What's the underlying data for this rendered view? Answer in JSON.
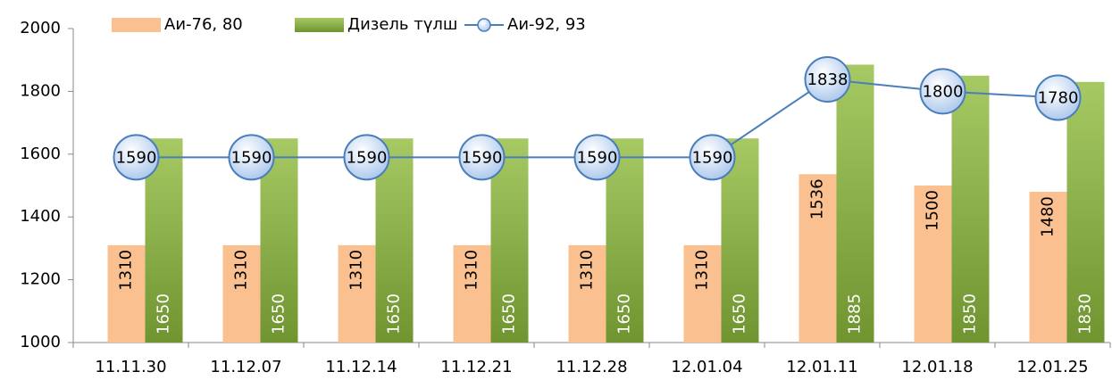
{
  "chart_data": {
    "type": "bar",
    "categories": [
      "11.11.30",
      "11.12.07",
      "11.12.14",
      "11.12.21",
      "11.12.28",
      "12.01.04",
      "12.01.11",
      "12.01.18",
      "12.01.25"
    ],
    "series": [
      {
        "name": "Аи-76, 80",
        "color": "#fac090",
        "type": "bar",
        "values": [
          1310,
          1310,
          1310,
          1310,
          1310,
          1310,
          1536,
          1500,
          1480
        ]
      },
      {
        "name": "Дизель түлш",
        "color": "#8cb33f",
        "type": "bar",
        "values": [
          1650,
          1650,
          1650,
          1650,
          1650,
          1650,
          1885,
          1850,
          1830
        ]
      },
      {
        "name": "Аи-92, 93",
        "color": "#4a7ebb",
        "type": "line",
        "values": [
          1590,
          1590,
          1590,
          1590,
          1590,
          1590,
          1838,
          1800,
          1780
        ]
      }
    ],
    "ylim": [
      1000,
      2000
    ],
    "yticks": [
      1000,
      1200,
      1400,
      1600,
      1800,
      2000
    ],
    "legend": "top"
  }
}
